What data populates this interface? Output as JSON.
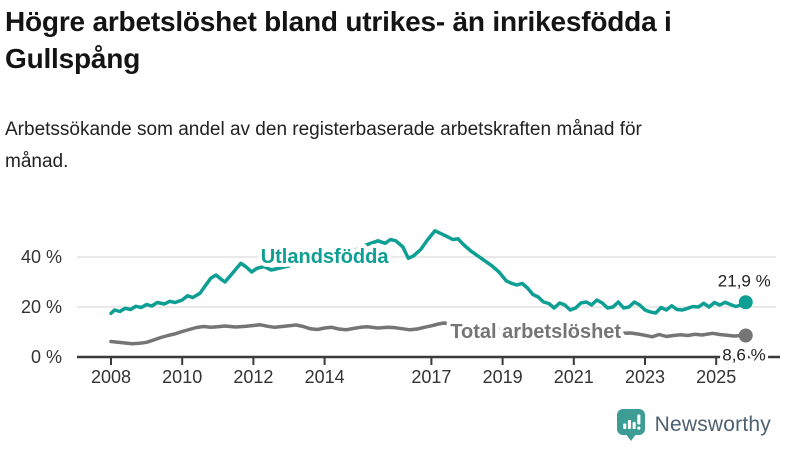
{
  "header": {
    "title": "Högre arbetslöshet bland utrikes- än inrikesfödda i Gullspång",
    "subtitle": "Arbetssökande som andel av den registerbaserade arbetskraften månad för månad."
  },
  "footer": {
    "brand": "Newsworthy",
    "logo_icon": "bar-chart-speech-bubble-icon"
  },
  "colors": {
    "foreign_line": "#0d9e94",
    "total_line": "#757575",
    "grid": "#dcdcdc",
    "axis": "#3a3a3a",
    "tick_text": "#333333",
    "end_label_text": "#222222",
    "brand_text": "#4d6170",
    "brand_icon": "#3d9c94"
  },
  "chart_data": {
    "type": "line",
    "title": "",
    "xlabel": "",
    "ylabel": "",
    "x_unit": "year (monthly observations)",
    "xlim": [
      2008.0,
      2025.83
    ],
    "ylim": [
      0,
      53
    ],
    "grid": "horizontal",
    "legend_position": "inline-labels",
    "x_ticks": [
      2008,
      2010,
      2012,
      2014,
      2017,
      2019,
      2021,
      2023,
      2025
    ],
    "y_ticks": [
      {
        "value": 0,
        "label": "0 %"
      },
      {
        "value": 20,
        "label": "20 %"
      },
      {
        "value": 40,
        "label": "40 %"
      }
    ],
    "series": [
      {
        "name": "Utlandsfödda",
        "color": "#0d9e94",
        "end_label": "21,9 %",
        "end_value": 21.9,
        "label_anchor": {
          "year": 2014.0,
          "value": 37.6
        },
        "points": [
          [
            2008.0,
            17.5
          ],
          [
            2008.1,
            18.8
          ],
          [
            2008.25,
            18.2
          ],
          [
            2008.4,
            19.5
          ],
          [
            2008.55,
            19.0
          ],
          [
            2008.7,
            20.3
          ],
          [
            2008.85,
            19.8
          ],
          [
            2009.0,
            21.0
          ],
          [
            2009.15,
            20.4
          ],
          [
            2009.3,
            21.8
          ],
          [
            2009.5,
            21.2
          ],
          [
            2009.65,
            22.3
          ],
          [
            2009.8,
            21.8
          ],
          [
            2010.0,
            22.8
          ],
          [
            2010.15,
            24.5
          ],
          [
            2010.3,
            23.8
          ],
          [
            2010.5,
            25.5
          ],
          [
            2010.65,
            28.5
          ],
          [
            2010.8,
            31.5
          ],
          [
            2010.95,
            32.8
          ],
          [
            2011.1,
            31.0
          ],
          [
            2011.2,
            30.0
          ],
          [
            2011.35,
            32.5
          ],
          [
            2011.5,
            35.0
          ],
          [
            2011.65,
            37.5
          ],
          [
            2011.8,
            36.0
          ],
          [
            2011.95,
            34.0
          ],
          [
            2012.1,
            35.5
          ],
          [
            2012.3,
            36.2
          ],
          [
            2012.5,
            34.8
          ],
          [
            2012.8,
            35.8
          ],
          [
            2013.1,
            36.8
          ],
          [
            2013.4,
            37.5
          ],
          [
            2013.7,
            38.2
          ],
          [
            2014.0,
            39.0
          ],
          [
            2014.3,
            40.0
          ],
          [
            2014.6,
            41.5
          ],
          [
            2014.9,
            43.0
          ],
          [
            2015.1,
            44.5
          ],
          [
            2015.3,
            45.5
          ],
          [
            2015.5,
            46.5
          ],
          [
            2015.7,
            45.5
          ],
          [
            2015.85,
            47.0
          ],
          [
            2016.0,
            46.5
          ],
          [
            2016.2,
            44.0
          ],
          [
            2016.35,
            39.5
          ],
          [
            2016.5,
            40.5
          ],
          [
            2016.7,
            43.0
          ],
          [
            2016.9,
            47.0
          ],
          [
            2017.1,
            50.5
          ],
          [
            2017.25,
            49.5
          ],
          [
            2017.4,
            48.5
          ],
          [
            2017.6,
            47.0
          ],
          [
            2017.75,
            47.3
          ],
          [
            2017.9,
            45.0
          ],
          [
            2018.1,
            42.5
          ],
          [
            2018.3,
            40.5
          ],
          [
            2018.5,
            38.5
          ],
          [
            2018.7,
            36.5
          ],
          [
            2018.9,
            34.0
          ],
          [
            2019.1,
            30.5
          ],
          [
            2019.25,
            29.5
          ],
          [
            2019.4,
            28.8
          ],
          [
            2019.55,
            29.4
          ],
          [
            2019.7,
            27.6
          ],
          [
            2019.85,
            25.0
          ],
          [
            2020.0,
            24.0
          ],
          [
            2020.15,
            22.0
          ],
          [
            2020.3,
            21.4
          ],
          [
            2020.45,
            19.6
          ],
          [
            2020.6,
            21.6
          ],
          [
            2020.75,
            20.8
          ],
          [
            2020.9,
            18.8
          ],
          [
            2021.05,
            19.6
          ],
          [
            2021.2,
            21.6
          ],
          [
            2021.35,
            22.0
          ],
          [
            2021.5,
            20.8
          ],
          [
            2021.65,
            22.8
          ],
          [
            2021.8,
            21.6
          ],
          [
            2021.95,
            19.6
          ],
          [
            2022.1,
            20.0
          ],
          [
            2022.25,
            22.0
          ],
          [
            2022.4,
            19.6
          ],
          [
            2022.55,
            20.0
          ],
          [
            2022.7,
            22.0
          ],
          [
            2022.85,
            20.8
          ],
          [
            2023.0,
            18.8
          ],
          [
            2023.15,
            18.0
          ],
          [
            2023.3,
            17.6
          ],
          [
            2023.45,
            19.8
          ],
          [
            2023.6,
            18.8
          ],
          [
            2023.75,
            20.5
          ],
          [
            2023.9,
            19.0
          ],
          [
            2024.05,
            18.8
          ],
          [
            2024.2,
            19.5
          ],
          [
            2024.35,
            20.2
          ],
          [
            2024.5,
            20.0
          ],
          [
            2024.65,
            21.5
          ],
          [
            2024.8,
            20.0
          ],
          [
            2024.95,
            21.8
          ],
          [
            2025.1,
            20.8
          ],
          [
            2025.25,
            21.9
          ],
          [
            2025.4,
            21.0
          ],
          [
            2025.55,
            20.2
          ],
          [
            2025.7,
            20.8
          ],
          [
            2025.83,
            21.9
          ]
        ]
      },
      {
        "name": "Total arbetslöshet",
        "color": "#757575",
        "end_label": "8,6 %",
        "end_value": 8.6,
        "label_anchor": {
          "year": 2019.93,
          "value": 7.6
        },
        "points": [
          [
            2008.0,
            6.2
          ],
          [
            2008.2,
            5.9
          ],
          [
            2008.4,
            5.6
          ],
          [
            2008.6,
            5.3
          ],
          [
            2008.8,
            5.5
          ],
          [
            2009.0,
            5.9
          ],
          [
            2009.2,
            6.8
          ],
          [
            2009.4,
            7.8
          ],
          [
            2009.6,
            8.6
          ],
          [
            2009.8,
            9.3
          ],
          [
            2010.0,
            10.2
          ],
          [
            2010.2,
            11.0
          ],
          [
            2010.4,
            11.8
          ],
          [
            2010.6,
            12.2
          ],
          [
            2010.8,
            11.9
          ],
          [
            2011.0,
            12.1
          ],
          [
            2011.2,
            12.4
          ],
          [
            2011.5,
            12.0
          ],
          [
            2011.8,
            12.3
          ],
          [
            2012.0,
            12.6
          ],
          [
            2012.2,
            12.9
          ],
          [
            2012.4,
            12.3
          ],
          [
            2012.6,
            11.9
          ],
          [
            2012.8,
            12.2
          ],
          [
            2013.0,
            12.5
          ],
          [
            2013.2,
            12.8
          ],
          [
            2013.4,
            12.2
          ],
          [
            2013.6,
            11.3
          ],
          [
            2013.8,
            11.0
          ],
          [
            2014.0,
            11.6
          ],
          [
            2014.2,
            11.9
          ],
          [
            2014.4,
            11.2
          ],
          [
            2014.6,
            10.9
          ],
          [
            2014.8,
            11.4
          ],
          [
            2015.0,
            11.9
          ],
          [
            2015.2,
            12.1
          ],
          [
            2015.5,
            11.6
          ],
          [
            2015.8,
            11.9
          ],
          [
            2016.0,
            11.7
          ],
          [
            2016.2,
            11.3
          ],
          [
            2016.4,
            10.9
          ],
          [
            2016.6,
            11.2
          ],
          [
            2016.8,
            11.9
          ],
          [
            2017.0,
            12.5
          ],
          [
            2017.2,
            13.2
          ],
          [
            2017.35,
            13.6
          ],
          [
            2017.5,
            13.2
          ],
          [
            2017.8,
            12.6
          ],
          [
            2018.1,
            12.2
          ],
          [
            2018.4,
            11.8
          ],
          [
            2018.7,
            11.4
          ],
          [
            2019.0,
            11.0
          ],
          [
            2019.3,
            10.7
          ],
          [
            2019.6,
            10.4
          ],
          [
            2019.9,
            10.6
          ],
          [
            2020.2,
            11.0
          ],
          [
            2020.5,
            10.6
          ],
          [
            2020.8,
            10.2
          ],
          [
            2021.1,
            9.9
          ],
          [
            2021.4,
            9.6
          ],
          [
            2021.7,
            9.4
          ],
          [
            2022.0,
            9.3
          ],
          [
            2022.3,
            9.5
          ],
          [
            2022.6,
            9.6
          ],
          [
            2022.8,
            9.2
          ],
          [
            2023.0,
            8.7
          ],
          [
            2023.2,
            8.1
          ],
          [
            2023.4,
            9.0
          ],
          [
            2023.6,
            8.2
          ],
          [
            2023.8,
            8.6
          ],
          [
            2024.0,
            8.9
          ],
          [
            2024.2,
            8.6
          ],
          [
            2024.4,
            9.1
          ],
          [
            2024.6,
            8.8
          ],
          [
            2024.9,
            9.5
          ],
          [
            2025.1,
            9.0
          ],
          [
            2025.3,
            8.7
          ],
          [
            2025.5,
            8.4
          ],
          [
            2025.65,
            8.5
          ],
          [
            2025.83,
            8.6
          ]
        ]
      }
    ]
  }
}
